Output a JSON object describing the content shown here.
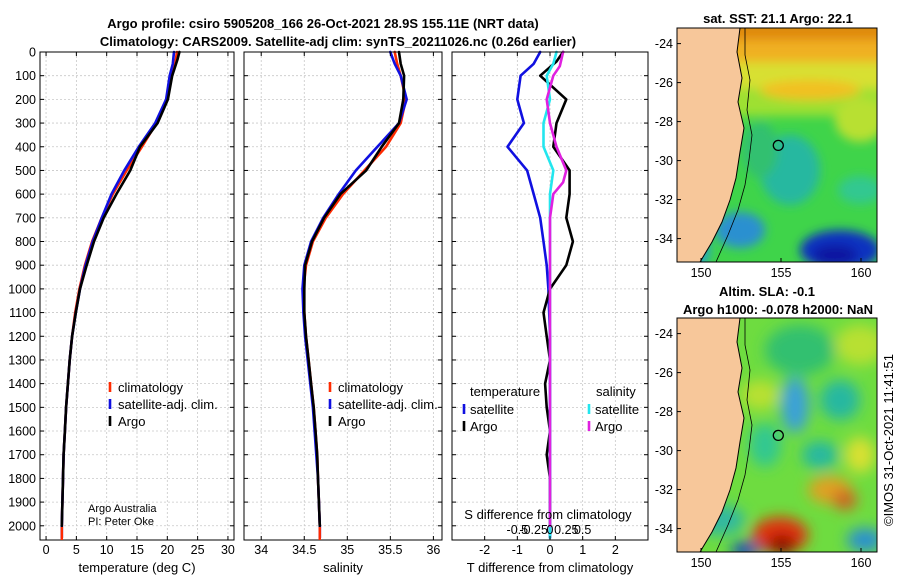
{
  "title": {
    "line1": "Argo profile: csiro 5905208_166 26-Oct-2021 28.9S 155.11E (NRT data)",
    "line2": "Climatology: CARS2009. Satellite-adj clim: synTS_20211026.nc (0.26d earlier)"
  },
  "credit": {
    "org": "Argo Australia",
    "pi": "PI: Peter Oke"
  },
  "stamp": "©IMOS 31-Oct-2021 11:41:51",
  "colors": {
    "climatology": "#ff2a00",
    "satellite": "#1010e0",
    "argo": "#000000",
    "sat_salinity": "#22e6ee",
    "argo_salinity": "#e020e0",
    "land": "#f7c79a"
  },
  "chart_data": [
    {
      "id": "temperature",
      "type": "line",
      "xlabel": "temperature (deg C)",
      "ylabel": "",
      "xlim": [
        -1,
        31
      ],
      "ylim": [
        2060,
        0
      ],
      "xticks": [
        0,
        5,
        10,
        15,
        20,
        25,
        30
      ],
      "yticks": [
        0,
        100,
        200,
        300,
        400,
        500,
        600,
        700,
        800,
        900,
        1000,
        1100,
        1200,
        1300,
        1400,
        1500,
        1600,
        1700,
        1800,
        1900,
        2000
      ],
      "legend": [
        "climatology",
        "satellite-adj. clim.",
        "Argo"
      ],
      "series": [
        {
          "name": "climatology",
          "color": "#ff2a00",
          "points": [
            [
              21.6,
              0
            ],
            [
              21.3,
              50
            ],
            [
              20.6,
              100
            ],
            [
              19.9,
              200
            ],
            [
              18.2,
              300
            ],
            [
              15.8,
              400
            ],
            [
              13.3,
              500
            ],
            [
              11.0,
              600
            ],
            [
              9.2,
              700
            ],
            [
              7.6,
              800
            ],
            [
              6.4,
              900
            ],
            [
              5.5,
              1000
            ],
            [
              4.8,
              1100
            ],
            [
              4.3,
              1200
            ],
            [
              3.9,
              1300
            ],
            [
              3.6,
              1400
            ],
            [
              3.3,
              1500
            ],
            [
              3.1,
              1600
            ],
            [
              2.9,
              1700
            ],
            [
              2.8,
              1800
            ],
            [
              2.7,
              1900
            ],
            [
              2.6,
              2000
            ],
            [
              2.6,
              2050
            ]
          ]
        },
        {
          "name": "satellite-adj. clim.",
          "color": "#1010e0",
          "points": [
            [
              21.1,
              0
            ],
            [
              20.9,
              50
            ],
            [
              20.4,
              100
            ],
            [
              19.8,
              200
            ],
            [
              18.0,
              300
            ],
            [
              15.3,
              400
            ],
            [
              12.9,
              500
            ],
            [
              10.8,
              600
            ],
            [
              9.2,
              700
            ],
            [
              7.7,
              800
            ],
            [
              6.5,
              900
            ],
            [
              5.6,
              1000
            ],
            [
              4.9,
              1100
            ],
            [
              4.3,
              1200
            ],
            [
              3.9,
              1300
            ],
            [
              3.6,
              1400
            ],
            [
              3.3,
              1500
            ],
            [
              3.1,
              1600
            ],
            [
              2.9,
              1700
            ],
            [
              2.8,
              1800
            ],
            [
              2.7,
              1900
            ],
            [
              2.6,
              2000
            ],
            [
              2.6,
              2050
            ]
          ]
        },
        {
          "name": "Argo",
          "color": "#000000",
          "points": [
            [
              22.0,
              0
            ],
            [
              21.7,
              30
            ],
            [
              20.8,
              100
            ],
            [
              20.1,
              200
            ],
            [
              18.4,
              300
            ],
            [
              15.5,
              400
            ],
            [
              13.9,
              500
            ],
            [
              11.6,
              600
            ],
            [
              9.5,
              700
            ],
            [
              7.9,
              800
            ],
            [
              6.7,
              900
            ],
            [
              5.6,
              1000
            ],
            [
              4.9,
              1100
            ],
            [
              4.3,
              1200
            ],
            [
              3.9,
              1300
            ],
            [
              3.6,
              1400
            ],
            [
              3.3,
              1500
            ],
            [
              3.1,
              1600
            ],
            [
              2.9,
              1700
            ],
            [
              2.8,
              1800
            ],
            [
              2.7,
              1900
            ],
            [
              2.6,
              2000
            ]
          ]
        }
      ]
    },
    {
      "id": "salinity",
      "type": "line",
      "xlabel": "salinity",
      "ylabel": "",
      "xlim": [
        33.8,
        36.1
      ],
      "ylim": [
        2060,
        0
      ],
      "xticks": [
        34,
        34.5,
        35,
        35.5,
        36
      ],
      "legend": [
        "climatology",
        "satellite-adj. clim.",
        "Argo"
      ],
      "series": [
        {
          "name": "climatology",
          "color": "#ff2a00",
          "points": [
            [
              35.55,
              0
            ],
            [
              35.58,
              50
            ],
            [
              35.62,
              100
            ],
            [
              35.68,
              200
            ],
            [
              35.62,
              300
            ],
            [
              35.45,
              400
            ],
            [
              35.2,
              500
            ],
            [
              34.95,
              600
            ],
            [
              34.75,
              700
            ],
            [
              34.6,
              800
            ],
            [
              34.52,
              900
            ],
            [
              34.49,
              1000
            ],
            [
              34.5,
              1100
            ],
            [
              34.52,
              1200
            ],
            [
              34.55,
              1300
            ],
            [
              34.58,
              1400
            ],
            [
              34.61,
              1500
            ],
            [
              34.63,
              1600
            ],
            [
              34.65,
              1700
            ],
            [
              34.66,
              1800
            ],
            [
              34.67,
              1900
            ],
            [
              34.68,
              2000
            ],
            [
              34.68,
              2050
            ]
          ]
        },
        {
          "name": "satellite-adj. clim.",
          "color": "#1010e0",
          "points": [
            [
              35.5,
              0
            ],
            [
              35.55,
              50
            ],
            [
              35.62,
              100
            ],
            [
              35.69,
              200
            ],
            [
              35.6,
              300
            ],
            [
              35.35,
              400
            ],
            [
              35.1,
              500
            ],
            [
              34.9,
              600
            ],
            [
              34.72,
              700
            ],
            [
              34.58,
              800
            ],
            [
              34.5,
              900
            ],
            [
              34.48,
              1000
            ],
            [
              34.49,
              1100
            ],
            [
              34.51,
              1200
            ],
            [
              34.54,
              1300
            ],
            [
              34.57,
              1400
            ],
            [
              34.6,
              1500
            ],
            [
              34.62,
              1600
            ],
            [
              34.64,
              1700
            ],
            [
              34.66,
              1800
            ],
            [
              34.67,
              1900
            ],
            [
              34.68,
              2000
            ],
            [
              34.68,
              2050
            ]
          ]
        },
        {
          "name": "Argo",
          "color": "#000000",
          "points": [
            [
              35.6,
              0
            ],
            [
              35.62,
              50
            ],
            [
              35.66,
              100
            ],
            [
              35.65,
              200
            ],
            [
              35.6,
              300
            ],
            [
              35.4,
              400
            ],
            [
              35.22,
              500
            ],
            [
              34.92,
              600
            ],
            [
              34.73,
              700
            ],
            [
              34.59,
              800
            ],
            [
              34.51,
              900
            ],
            [
              34.5,
              1000
            ],
            [
              34.5,
              1100
            ],
            [
              34.52,
              1200
            ],
            [
              34.55,
              1300
            ],
            [
              34.58,
              1400
            ],
            [
              34.61,
              1500
            ],
            [
              34.63,
              1600
            ],
            [
              34.65,
              1700
            ],
            [
              34.66,
              1800
            ],
            [
              34.67,
              1900
            ],
            [
              34.68,
              2000
            ]
          ]
        }
      ]
    },
    {
      "id": "differences",
      "type": "line",
      "xlabel": "T difference from climatology",
      "xlabel2": "S difference from climatology",
      "xlim": [
        -3,
        3
      ],
      "ylim": [
        2060,
        0
      ],
      "xticks": [
        -2,
        -1,
        0,
        1,
        2
      ],
      "xticks_labels": [
        "-2",
        "-1",
        "0",
        "1",
        "2"
      ],
      "s_ticks": [
        -1,
        -0.5,
        0,
        0.5,
        1
      ],
      "s_tick_labels": [
        "-0.5",
        "-0.25",
        "0",
        "0.25",
        "0.5"
      ],
      "legend_temperature": {
        "title": "temperature",
        "items": [
          "satellite",
          "Argo"
        ]
      },
      "legend_salinity": {
        "title": "salinity",
        "items": [
          "satellite",
          "Argo"
        ]
      },
      "series": [
        {
          "name": "temperature satellite",
          "color": "#1010e0",
          "points": [
            [
              -0.3,
              0
            ],
            [
              -0.5,
              50
            ],
            [
              -0.9,
              100
            ],
            [
              -1.0,
              200
            ],
            [
              -0.8,
              300
            ],
            [
              -1.3,
              400
            ],
            [
              -0.7,
              500
            ],
            [
              -0.5,
              600
            ],
            [
              -0.3,
              700
            ],
            [
              -0.2,
              800
            ],
            [
              -0.1,
              900
            ],
            [
              -0.05,
              1000
            ],
            [
              0,
              1200
            ],
            [
              0,
              1600
            ],
            [
              0,
              2000
            ],
            [
              0,
              2050
            ]
          ]
        },
        {
          "name": "temperature Argo",
          "color": "#000000",
          "points": [
            [
              0.4,
              0
            ],
            [
              0.2,
              40
            ],
            [
              -0.3,
              100
            ],
            [
              0.5,
              200
            ],
            [
              0.2,
              300
            ],
            [
              0.1,
              400
            ],
            [
              0.6,
              500
            ],
            [
              0.6,
              600
            ],
            [
              0.5,
              700
            ],
            [
              0.7,
              800
            ],
            [
              0.5,
              900
            ],
            [
              0,
              1000
            ],
            [
              -0.2,
              1100
            ],
            [
              -0.1,
              1200
            ],
            [
              0,
              1300
            ],
            [
              -0.15,
              1400
            ],
            [
              -0.1,
              1500
            ],
            [
              0,
              1600
            ],
            [
              -0.1,
              1700
            ],
            [
              0,
              1800
            ],
            [
              0,
              1900
            ],
            [
              0,
              2000
            ]
          ]
        },
        {
          "name": "salinity satellite",
          "color": "#22e6ee",
          "points": [
            [
              0.2,
              0
            ],
            [
              0.1,
              50
            ],
            [
              -0.1,
              100
            ],
            [
              0,
              200
            ],
            [
              -0.2,
              300
            ],
            [
              -0.2,
              400
            ],
            [
              0.1,
              500
            ],
            [
              0,
              600
            ],
            [
              0,
              700
            ],
            [
              0,
              800
            ],
            [
              0,
              1000
            ],
            [
              0,
              1400
            ],
            [
              0,
              2050
            ]
          ]
        },
        {
          "name": "salinity Argo",
          "color": "#e020e0",
          "points": [
            [
              0.4,
              0
            ],
            [
              0.3,
              60
            ],
            [
              0.1,
              100
            ],
            [
              -0.1,
              200
            ],
            [
              0,
              300
            ],
            [
              0.2,
              400
            ],
            [
              0.5,
              500
            ],
            [
              0.4,
              550
            ],
            [
              0.1,
              600
            ],
            [
              0,
              700
            ],
            [
              0,
              800
            ],
            [
              0,
              1200
            ],
            [
              0,
              1600
            ],
            [
              0,
              2000
            ]
          ]
        }
      ]
    },
    {
      "id": "sst_map",
      "type": "heatmap",
      "title": "sat. SST: 21.1 Argo: 22.1",
      "xlim": [
        148.5,
        161
      ],
      "ylim": [
        -35.2,
        -23.2
      ],
      "xticks": [
        150,
        155,
        160
      ],
      "yticks": [
        -24,
        -26,
        -28,
        -30,
        -32,
        -34
      ],
      "argo_position": {
        "lon": 155.11,
        "lat": -28.9
      }
    },
    {
      "id": "sla_map",
      "type": "heatmap",
      "title": "Altim. SLA: -0.1",
      "subtitle": "Argo h1000: -0.078 h2000: NaN",
      "xlim": [
        148.5,
        161
      ],
      "ylim": [
        -35.2,
        -23.2
      ],
      "xticks": [
        150,
        155,
        160
      ],
      "yticks": [
        -24,
        -26,
        -28,
        -30,
        -32,
        -34
      ],
      "argo_position": {
        "lon": 155.11,
        "lat": -28.9
      }
    }
  ]
}
